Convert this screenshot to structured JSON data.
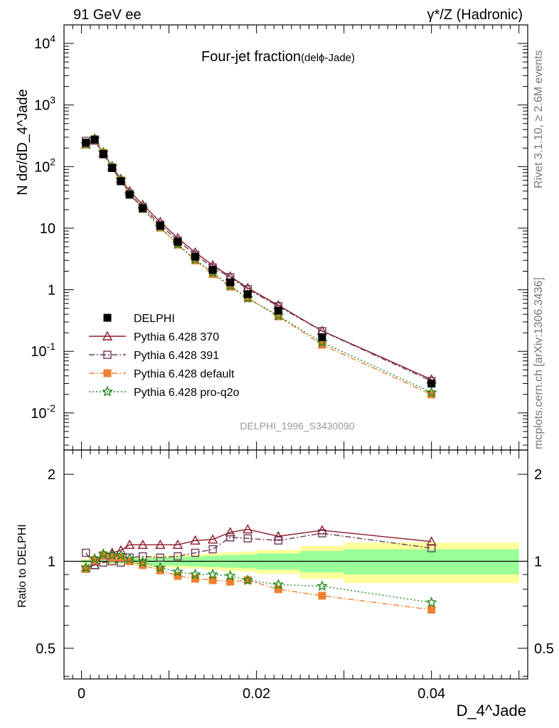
{
  "header": {
    "left": "91 GeV ee",
    "right_base": "γ*/Z (Hadronic)"
  },
  "side": {
    "rivet": "Rivet 3.1.10, ≥ 2.6M events",
    "mcplots": "mcplots.cern.ch [arXiv:1306.3436]"
  },
  "chart_data": [
    {
      "type": "scatter",
      "title_main": "Four-jet fraction",
      "title_sub": "(delϕ-Jade)",
      "ylabel": "N dσ/dD_4^Jade",
      "xlim": [
        -0.002,
        0.051
      ],
      "ylim": [
        0.0025,
        20000
      ],
      "yscale": "log",
      "ytick_labels": [
        "10^-2",
        "10^-1",
        "1",
        "10",
        "10^2",
        "10^3",
        "10^4"
      ],
      "watermark": "DELPHI_1996_S3430090",
      "legend_position": "lower-left",
      "x": [
        0.0005,
        0.0015,
        0.0025,
        0.0035,
        0.0045,
        0.0055,
        0.007,
        0.009,
        0.011,
        0.013,
        0.015,
        0.017,
        0.019,
        0.0225,
        0.0275,
        0.04
      ],
      "series": [
        {
          "name": "DELPHI",
          "color": "#000000",
          "marker": "filled-square",
          "line": "none",
          "values": [
            245,
            275,
            160,
            95,
            58,
            35,
            21,
            11,
            6.0,
            3.45,
            2.1,
            1.32,
            0.85,
            0.46,
            0.17,
            0.03
          ]
        },
        {
          "name": "Pythia 6.428 370",
          "color": "#8b1a2a",
          "marker": "open-triangle",
          "line": "solid",
          "values": [
            230,
            265,
            168,
            101,
            63,
            40,
            24,
            12.6,
            6.9,
            4.05,
            2.5,
            1.65,
            1.07,
            0.56,
            0.215,
            0.035
          ]
        },
        {
          "name": "Pythia 6.428 391",
          "color": "#6b3a5a",
          "marker": "open-square",
          "line": "dashdot",
          "values": [
            262,
            267,
            158,
            95,
            58,
            36,
            22,
            11.4,
            6.3,
            3.7,
            2.3,
            1.6,
            1.02,
            0.54,
            0.213,
            0.033
          ]
        },
        {
          "name": "Pythia 6.428 default",
          "color": "#f08030",
          "marker": "filled-square",
          "line": "dashdot",
          "values": [
            230,
            278,
            168,
            98,
            60,
            35,
            20.5,
            10.2,
            5.4,
            3.0,
            1.8,
            1.12,
            0.73,
            0.37,
            0.128,
            0.02
          ]
        },
        {
          "name": "Pythia 6.428 pro-q2o",
          "color": "#1f8a1f",
          "marker": "open-star",
          "line": "dotted",
          "values": [
            232,
            283,
            170,
            100,
            61,
            36,
            21,
            10.5,
            5.5,
            3.1,
            1.9,
            1.17,
            0.73,
            0.38,
            0.14,
            0.0215
          ]
        }
      ]
    },
    {
      "type": "scatter",
      "ylabel": "Ratio to DELPHI",
      "xlabel": "D_4^Jade",
      "xlim": [
        -0.002,
        0.051
      ],
      "ylim": [
        0.3916,
        2.4263
      ],
      "yscale": "log",
      "ytick_labels": [
        "0.5",
        "1",
        "2"
      ],
      "xtick_labels": [
        "0",
        "0.02",
        "0.04"
      ],
      "x": [
        0.0005,
        0.0015,
        0.0025,
        0.0035,
        0.0045,
        0.0055,
        0.007,
        0.009,
        0.011,
        0.013,
        0.015,
        0.017,
        0.019,
        0.0225,
        0.0275,
        0.04
      ],
      "uncertainty_bins": [
        {
          "x0": 0.0,
          "x1": 0.001,
          "inner": 0.01,
          "outer": 0.02
        },
        {
          "x0": 0.001,
          "x1": 0.002,
          "inner": 0.01,
          "outer": 0.02
        },
        {
          "x0": 0.002,
          "x1": 0.003,
          "inner": 0.01,
          "outer": 0.02
        },
        {
          "x0": 0.003,
          "x1": 0.004,
          "inner": 0.015,
          "outer": 0.025
        },
        {
          "x0": 0.004,
          "x1": 0.005,
          "inner": 0.015,
          "outer": 0.025
        },
        {
          "x0": 0.005,
          "x1": 0.006,
          "inner": 0.02,
          "outer": 0.03
        },
        {
          "x0": 0.006,
          "x1": 0.008,
          "inner": 0.025,
          "outer": 0.035
        },
        {
          "x0": 0.008,
          "x1": 0.01,
          "inner": 0.03,
          "outer": 0.045
        },
        {
          "x0": 0.01,
          "x1": 0.012,
          "inner": 0.035,
          "outer": 0.05
        },
        {
          "x0": 0.012,
          "x1": 0.014,
          "inner": 0.04,
          "outer": 0.055
        },
        {
          "x0": 0.014,
          "x1": 0.016,
          "inner": 0.045,
          "outer": 0.065
        },
        {
          "x0": 0.016,
          "x1": 0.018,
          "inner": 0.05,
          "outer": 0.075
        },
        {
          "x0": 0.018,
          "x1": 0.02,
          "inner": 0.055,
          "outer": 0.08
        },
        {
          "x0": 0.02,
          "x1": 0.025,
          "inner": 0.065,
          "outer": 0.095
        },
        {
          "x0": 0.025,
          "x1": 0.03,
          "inner": 0.085,
          "outer": 0.13
        },
        {
          "x0": 0.03,
          "x1": 0.05,
          "inner": 0.1,
          "outer": 0.16
        }
      ],
      "series": [
        {
          "name": "Pythia 6.428 370",
          "color": "#8b1a2a",
          "values": [
            0.95,
            0.97,
            1.05,
            1.07,
            1.09,
            1.14,
            1.14,
            1.14,
            1.14,
            1.18,
            1.19,
            1.26,
            1.29,
            1.22,
            1.28,
            1.17
          ]
        },
        {
          "name": "Pythia 6.428 391",
          "color": "#6b3a5a",
          "values": [
            1.07,
            0.97,
            0.99,
            1.0,
            0.99,
            1.03,
            1.04,
            1.03,
            1.04,
            1.07,
            1.1,
            1.21,
            1.2,
            1.18,
            1.25,
            1.11
          ]
        },
        {
          "name": "Pythia 6.428 default",
          "color": "#f08030",
          "values": [
            0.94,
            1.01,
            1.05,
            1.03,
            1.03,
            1.0,
            0.97,
            0.93,
            0.89,
            0.87,
            0.86,
            0.85,
            0.86,
            0.8,
            0.76,
            0.68
          ]
        },
        {
          "name": "Pythia 6.428 pro-q2o",
          "color": "#1f8a1f",
          "values": [
            0.95,
            1.02,
            1.06,
            1.05,
            1.05,
            1.02,
            0.99,
            0.95,
            0.92,
            0.9,
            0.9,
            0.89,
            0.86,
            0.83,
            0.82,
            0.72
          ]
        }
      ]
    }
  ]
}
